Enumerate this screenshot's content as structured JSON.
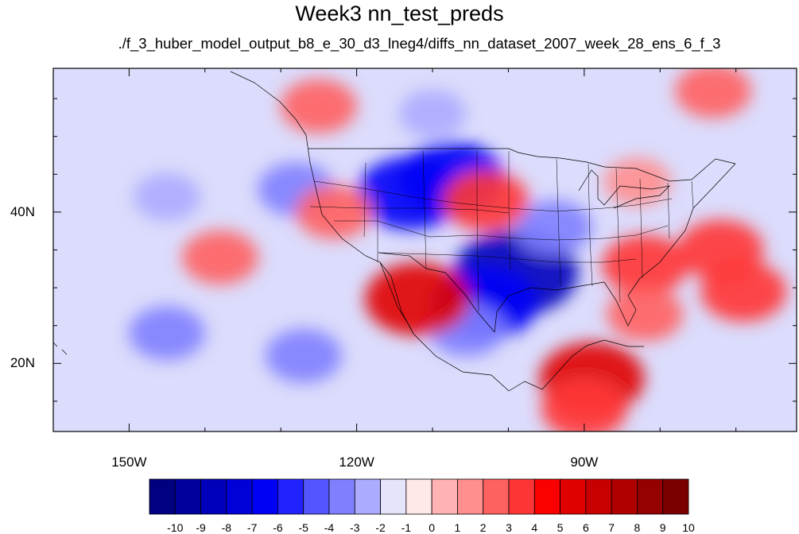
{
  "title": "Week3 nn_test_preds",
  "subtitle": "./f_3_huber_model_output_b8_e_30_d3_lneg4/diffs_nn_dataset_2007_week_28_ens_6_f_3",
  "map": {
    "projection": "cylindrical-equidistant",
    "lon_range": [
      -160,
      -62
    ],
    "lat_range": [
      11,
      59
    ],
    "x_tick_labels": [
      {
        "lon": -150,
        "label": "150W"
      },
      {
        "lon": -120,
        "label": "120W"
      },
      {
        "lon": -90,
        "label": "90W"
      }
    ],
    "y_tick_labels": [
      {
        "lat": 40,
        "label": "40N"
      },
      {
        "lat": 20,
        "label": "20N"
      }
    ],
    "features": [
      "coastlines",
      "us-state-borders",
      "country-borders"
    ]
  },
  "colorbar": {
    "labels": [
      "-10",
      "-9",
      "-8",
      "-7",
      "-6",
      "-5",
      "-4",
      "-3",
      "-2",
      "-1",
      "0",
      "1",
      "2",
      "3",
      "4",
      "5",
      "6",
      "7",
      "8",
      "9",
      "10"
    ],
    "colors": [
      "#000080",
      "#00009e",
      "#0000bb",
      "#0000d9",
      "#0000f7",
      "#2222ff",
      "#5555ff",
      "#8080ff",
      "#ababff",
      "#e4e4fa",
      "#ffe8e8",
      "#ffb3b3",
      "#ff8e8e",
      "#ff6161",
      "#ff3535",
      "#fa0000",
      "#e00000",
      "#c80000",
      "#b00000",
      "#950000",
      "#7a0000"
    ]
  },
  "chart_data": {
    "type": "heatmap",
    "title": "Week3 nn_test_preds",
    "subtitle": "./f_3_huber_model_output_b8_e_30_d3_lneg4/diffs_nn_dataset_2007_week_28_ens_6_f_3",
    "x_axis": "longitude",
    "y_axis": "latitude",
    "xlim": [
      -160,
      -62
    ],
    "ylim": [
      11,
      59
    ],
    "contour_levels": [
      -10,
      -9,
      -8,
      -7,
      -6,
      -5,
      -4,
      -3,
      -2,
      -1,
      0,
      1,
      2,
      3,
      4,
      5,
      6,
      7,
      8,
      9,
      10
    ],
    "regions": [
      {
        "lon": -113,
        "lat": 42.5,
        "value": -6
      },
      {
        "lon": -107.5,
        "lat": 44.5,
        "value": -6
      },
      {
        "lon": -99,
        "lat": 32,
        "value": -8
      },
      {
        "lon": -103,
        "lat": 28,
        "value": -6
      },
      {
        "lon": -94,
        "lat": 38,
        "value": -3
      },
      {
        "lon": -128,
        "lat": 43,
        "value": -3
      },
      {
        "lon": -145,
        "lat": 24,
        "value": -3
      },
      {
        "lon": -127,
        "lat": 21,
        "value": -3
      },
      {
        "lon": -145,
        "lat": 42,
        "value": -2
      },
      {
        "lon": -110,
        "lat": 53,
        "value": -2
      },
      {
        "lon": -105.5,
        "lat": 24.5,
        "value": -3
      },
      {
        "lon": -82,
        "lat": 33,
        "value": 4
      },
      {
        "lon": -72,
        "lat": 35,
        "value": 4
      },
      {
        "lon": -82,
        "lat": 26.5,
        "value": 3
      },
      {
        "lon": -69,
        "lat": 29.5,
        "value": 4
      },
      {
        "lon": -89,
        "lat": 18,
        "value": 6
      },
      {
        "lon": -90,
        "lat": 14,
        "value": 4
      },
      {
        "lon": -112,
        "lat": 28.5,
        "value": 6
      },
      {
        "lon": -103,
        "lat": 41.5,
        "value": 4
      },
      {
        "lon": -125,
        "lat": 54,
        "value": 3
      },
      {
        "lon": -73,
        "lat": 56,
        "value": 3
      },
      {
        "lon": -138,
        "lat": 34,
        "value": 3
      },
      {
        "lon": -123,
        "lat": 40,
        "value": 3
      },
      {
        "lon": -83,
        "lat": 44,
        "value": 2
      }
    ]
  }
}
